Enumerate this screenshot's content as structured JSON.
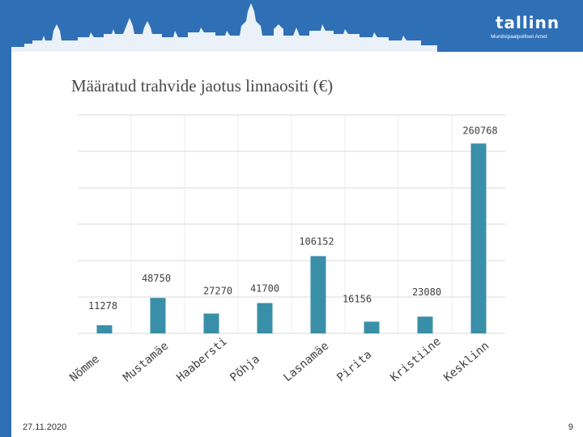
{
  "slide": {
    "title": "Määratud trahvide jaotus linnaositi  (€)",
    "date": "27.11.2020",
    "page_number": "9"
  },
  "logo": {
    "wordmark": "tallinn",
    "subtitle": "Munitsipaalpolitsei Amet"
  },
  "colors": {
    "header": "#2f6fb6",
    "bar": "#3a8fa8",
    "grid": "#d9d9d9",
    "label": "#404040"
  },
  "chart_data": {
    "type": "bar",
    "title": "Määratud trahvide jaotus linnaositi  (€)",
    "categories": [
      "Nõmme",
      "Mustamäe",
      "Haabersti",
      "Põhja",
      "Lasnamäe",
      "Pirita",
      "Kristiine",
      "Kesklinn"
    ],
    "values": [
      11278,
      48750,
      27270,
      41700,
      106152,
      16156,
      23080,
      260768
    ],
    "data_labels": [
      "11278",
      "48750",
      "27270",
      "41700",
      "106152",
      "16156",
      "23080",
      "260768"
    ],
    "ylim": [
      0,
      300000
    ],
    "grid": true,
    "xlabel": "",
    "ylabel": ""
  }
}
